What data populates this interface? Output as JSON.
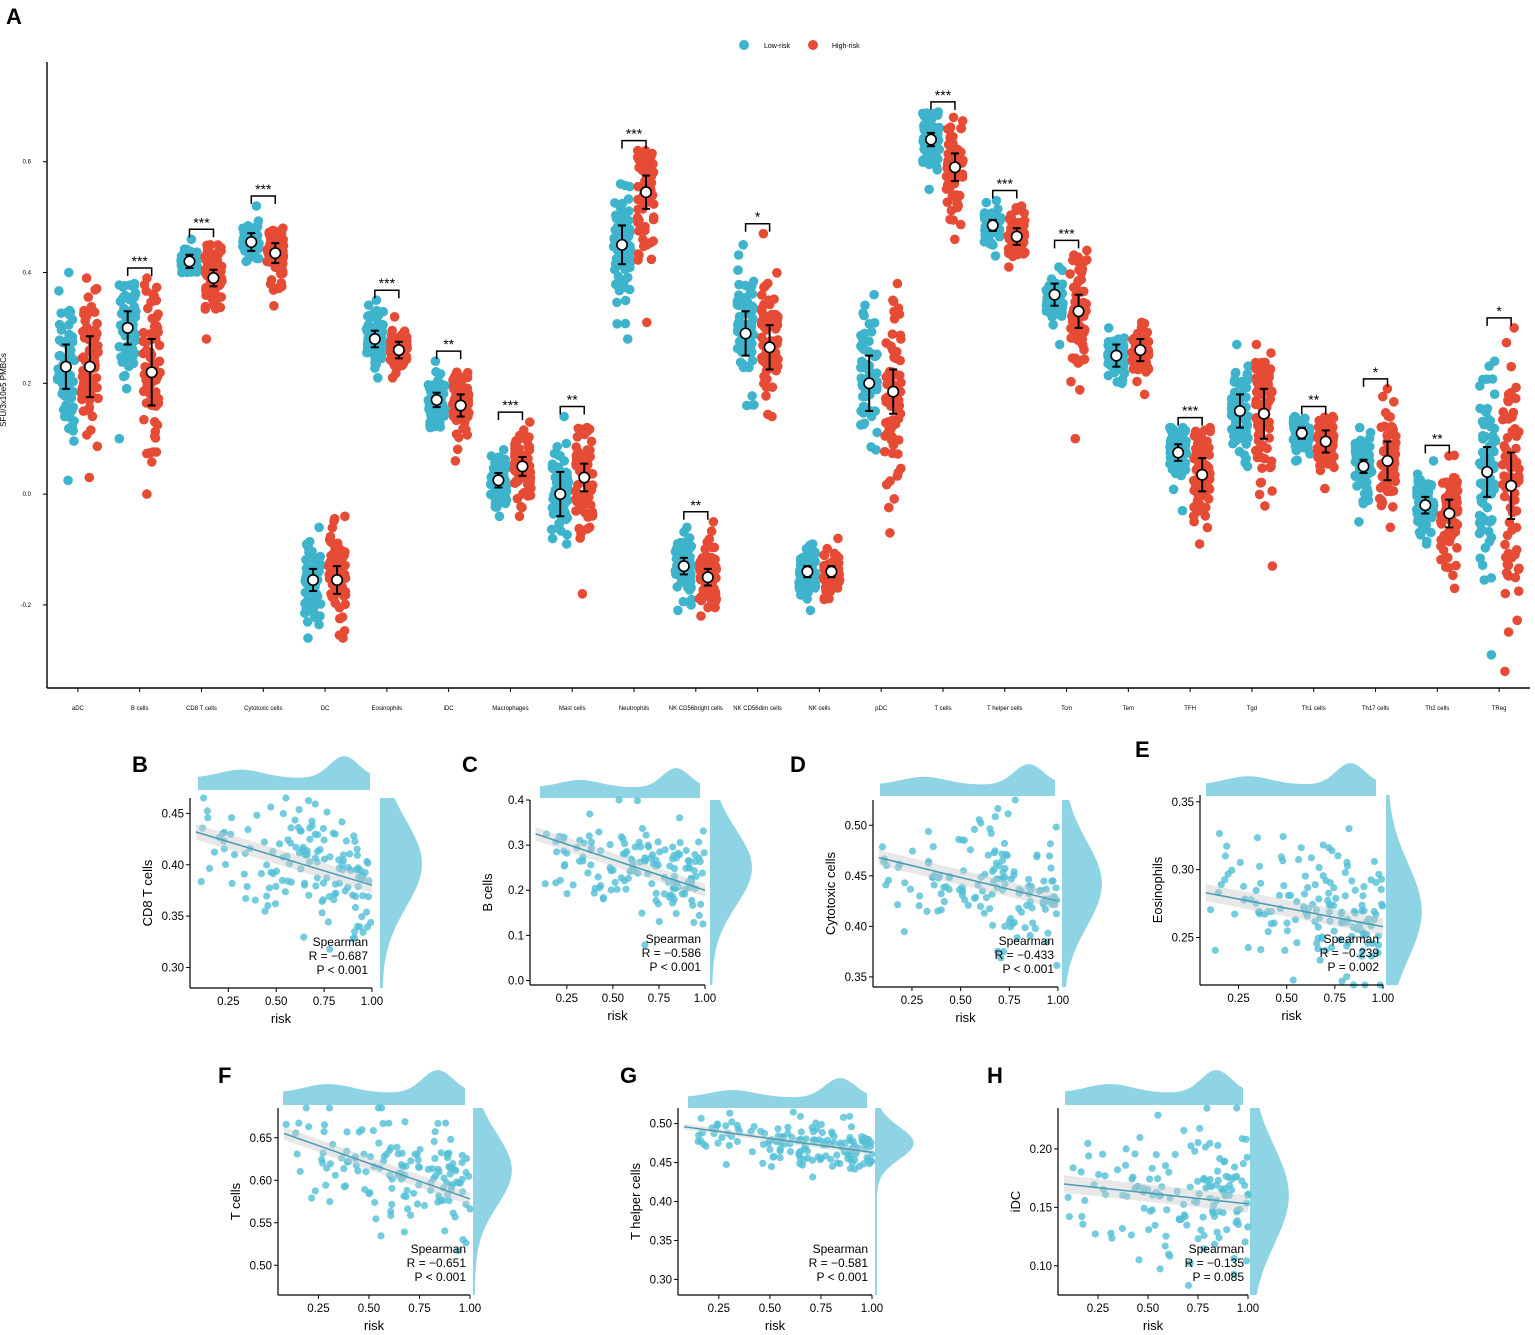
{
  "figure": {
    "colors": {
      "low": "#3eb3cc",
      "high": "#e64b35",
      "scatter": "#52bfd6",
      "density": "#8fd4e4",
      "trend": "#4a9cb5"
    }
  },
  "chart_data": [
    {
      "panel": "A",
      "type": "scatter",
      "subtype": "grouped jitter strip with mean and error bars",
      "legend": [
        "Low-risk",
        "High-risk"
      ],
      "legend_position": "top-center",
      "ylabel": "SFU/3x10e5 PMBCs",
      "ylim": [
        -0.35,
        0.78
      ],
      "yticks": [
        -0.2,
        0.0,
        0.2,
        0.4,
        0.6
      ],
      "ytick_labels": [
        "-0.2",
        "0.0",
        "0.2",
        "0.4",
        "0.6"
      ],
      "categories": [
        "aDC",
        "B cells",
        "CD8 T cells",
        "Cytotoxic cells",
        "DC",
        "Eosinophils",
        "iDC",
        "Macrophages",
        "Mast cells",
        "Neutrophils",
        "NK CD56bright cells",
        "NK CD56dim cells",
        "NK cells",
        "pDC",
        "T cells",
        "T helper cells",
        "Tcm",
        "Tem",
        "TFH",
        "Tgd",
        "Th1 cells",
        "Th17 cells",
        "Th2 cells",
        "TReg"
      ],
      "series": [
        {
          "name": "Low-risk",
          "mean": [
            0.23,
            0.3,
            0.42,
            0.455,
            -0.155,
            0.28,
            0.17,
            0.025,
            0.0,
            0.45,
            -0.13,
            0.29,
            -0.14,
            0.2,
            0.64,
            0.485,
            0.36,
            0.25,
            0.075,
            0.15,
            0.11,
            0.05,
            -0.02,
            0.04
          ],
          "err": [
            0.04,
            0.03,
            0.012,
            0.016,
            0.02,
            0.015,
            0.013,
            0.013,
            0.04,
            0.035,
            0.015,
            0.04,
            0.01,
            0.05,
            0.012,
            0.01,
            0.02,
            0.02,
            0.015,
            0.03,
            0.01,
            0.012,
            0.015,
            0.045
          ],
          "min": [
            0.025,
            0.1,
            0.4,
            0.42,
            -0.26,
            0.21,
            0.12,
            -0.04,
            -0.09,
            0.28,
            -0.21,
            0.16,
            -0.21,
            0.08,
            0.55,
            0.43,
            0.27,
            0.2,
            -0.03,
            0.05,
            0.06,
            -0.05,
            -0.09,
            -0.29
          ],
          "max": [
            0.4,
            0.38,
            0.46,
            0.52,
            -0.06,
            0.35,
            0.24,
            0.08,
            0.14,
            0.56,
            -0.06,
            0.45,
            -0.09,
            0.36,
            0.69,
            0.53,
            0.41,
            0.3,
            0.12,
            0.27,
            0.14,
            0.12,
            0.06,
            0.24
          ]
        },
        {
          "name": "High-risk",
          "mean": [
            0.23,
            0.22,
            0.39,
            0.435,
            -0.155,
            0.26,
            0.16,
            0.05,
            0.03,
            0.545,
            -0.15,
            0.265,
            -0.14,
            0.185,
            0.59,
            0.465,
            0.33,
            0.26,
            0.035,
            0.145,
            0.095,
            0.06,
            -0.035,
            0.015
          ],
          "err": [
            0.055,
            0.06,
            0.015,
            0.018,
            0.025,
            0.015,
            0.02,
            0.017,
            0.025,
            0.03,
            0.015,
            0.04,
            0.01,
            0.04,
            0.025,
            0.015,
            0.03,
            0.02,
            0.03,
            0.045,
            0.02,
            0.035,
            0.025,
            0.06
          ],
          "min": [
            0.03,
            0.0,
            0.28,
            0.34,
            -0.26,
            0.21,
            0.06,
            -0.04,
            -0.18,
            0.31,
            -0.22,
            0.14,
            -0.19,
            -0.07,
            0.46,
            0.41,
            0.1,
            0.18,
            -0.09,
            -0.13,
            0.01,
            -0.06,
            -0.17,
            -0.32
          ],
          "max": [
            0.39,
            0.39,
            0.45,
            0.48,
            -0.04,
            0.32,
            0.22,
            0.13,
            0.12,
            0.62,
            -0.05,
            0.47,
            -0.08,
            0.38,
            0.68,
            0.52,
            0.44,
            0.31,
            0.12,
            0.27,
            0.14,
            0.19,
            0.07,
            0.3
          ]
        }
      ],
      "significance": [
        "",
        "***",
        "***",
        "***",
        "",
        "***",
        "**",
        "***",
        "**",
        "***",
        "**",
        "*",
        "",
        "",
        "***",
        "***",
        "***",
        "",
        "***",
        "",
        "**",
        "*",
        "**",
        "*"
      ]
    },
    {
      "panel": "B",
      "type": "scatter",
      "title": "B",
      "xlabel": "risk",
      "ylabel": "CD8 T cells",
      "xlim": [
        0.05,
        1.0
      ],
      "ylim": [
        0.28,
        0.465
      ],
      "xticks": [
        0.25,
        0.5,
        0.75,
        1.0
      ],
      "xtick_labels": [
        "0.25",
        "0.50",
        "0.75",
        "1.00"
      ],
      "yticks": [
        0.3,
        0.35,
        0.4,
        0.45
      ],
      "ytick_labels": [
        "0.30",
        "0.35",
        "0.40",
        "0.45"
      ],
      "trend": {
        "x": [
          0.08,
          1.0
        ],
        "y": [
          0.432,
          0.38
        ]
      },
      "stats": {
        "method": "Spearman",
        "R": "R = −0.687",
        "P": "P < 0.001"
      },
      "points_summary": {
        "n": 150,
        "center_y_low_risk": 0.425,
        "center_y_high_risk": 0.385,
        "spread": 0.03
      }
    },
    {
      "panel": "C",
      "type": "scatter",
      "title": "C",
      "xlabel": "risk",
      "ylabel": "B cells",
      "xlim": [
        0.05,
        1.0
      ],
      "ylim": [
        -0.01,
        0.4
      ],
      "xticks": [
        0.25,
        0.5,
        0.75,
        1.0
      ],
      "xtick_labels": [
        "0.25",
        "0.50",
        "0.75",
        "1.00"
      ],
      "yticks": [
        0.0,
        0.1,
        0.2,
        0.3,
        0.4
      ],
      "ytick_labels": [
        "0.0",
        "0.1",
        "0.2",
        "0.3",
        "0.4"
      ],
      "trend": {
        "x": [
          0.08,
          1.0
        ],
        "y": [
          0.325,
          0.2
        ]
      },
      "stats": {
        "method": "Spearman",
        "R": "R = −0.586",
        "P": "P < 0.001"
      },
      "points_summary": {
        "n": 150,
        "center_y_low_risk": 0.31,
        "center_y_high_risk": 0.21,
        "spread": 0.06
      }
    },
    {
      "panel": "D",
      "type": "scatter",
      "title": "D",
      "xlabel": "risk",
      "ylabel": "Cytotoxic cells",
      "xlim": [
        0.05,
        1.0
      ],
      "ylim": [
        0.34,
        0.525
      ],
      "xticks": [
        0.25,
        0.5,
        0.75,
        1.0
      ],
      "xtick_labels": [
        "0.25",
        "0.50",
        "0.75",
        "1.00"
      ],
      "yticks": [
        0.35,
        0.4,
        0.45,
        0.5
      ],
      "ytick_labels": [
        "0.35",
        "0.40",
        "0.45",
        "0.50"
      ],
      "trend": {
        "x": [
          0.08,
          1.0
        ],
        "y": [
          0.468,
          0.425
        ]
      },
      "stats": {
        "method": "Spearman",
        "R": "R = −0.433",
        "P": "P < 0.001"
      },
      "points_summary": {
        "n": 150,
        "center_y_low_risk": 0.46,
        "center_y_high_risk": 0.43,
        "spread": 0.03
      }
    },
    {
      "panel": "E",
      "type": "scatter",
      "title": "E",
      "xlabel": "risk",
      "ylabel": "Eosinophils",
      "xlim": [
        0.05,
        1.0
      ],
      "ylim": [
        0.215,
        0.355
      ],
      "xticks": [
        0.25,
        0.5,
        0.75,
        1.0
      ],
      "xtick_labels": [
        "0.25",
        "0.50",
        "0.75",
        "1.00"
      ],
      "yticks": [
        0.25,
        0.3,
        0.35
      ],
      "ytick_labels": [
        "0.25",
        "0.30",
        "0.35"
      ],
      "trend": {
        "x": [
          0.08,
          1.0
        ],
        "y": [
          0.283,
          0.258
        ]
      },
      "stats": {
        "method": "Spearman",
        "R": "R = −0.239",
        "P": "P = 0.002"
      },
      "points_summary": {
        "n": 150,
        "center_y_low_risk": 0.28,
        "center_y_high_risk": 0.262,
        "spread": 0.025
      }
    },
    {
      "panel": "F",
      "type": "scatter",
      "title": "F",
      "xlabel": "risk",
      "ylabel": "T cells",
      "xlim": [
        0.05,
        1.0
      ],
      "ylim": [
        0.465,
        0.685
      ],
      "xticks": [
        0.25,
        0.5,
        0.75,
        1.0
      ],
      "xtick_labels": [
        "0.25",
        "0.50",
        "0.75",
        "1.00"
      ],
      "yticks": [
        0.5,
        0.55,
        0.6,
        0.65
      ],
      "ytick_labels": [
        "0.50",
        "0.55",
        "0.60",
        "0.65"
      ],
      "trend": {
        "x": [
          0.08,
          1.0
        ],
        "y": [
          0.655,
          0.578
        ]
      },
      "stats": {
        "method": "Spearman",
        "R": "R = −0.651",
        "P": "P < 0.001"
      },
      "points_summary": {
        "n": 150,
        "center_y_low_risk": 0.645,
        "center_y_high_risk": 0.59,
        "spread": 0.03
      }
    },
    {
      "panel": "G",
      "type": "scatter",
      "title": "G",
      "xlabel": "risk",
      "ylabel": "T helper cells",
      "xlim": [
        0.05,
        1.0
      ],
      "ylim": [
        0.28,
        0.52
      ],
      "xticks": [
        0.25,
        0.5,
        0.75,
        1.0
      ],
      "xtick_labels": [
        "0.25",
        "0.50",
        "0.75",
        "1.00"
      ],
      "yticks": [
        0.3,
        0.35,
        0.4,
        0.45,
        0.5
      ],
      "ytick_labels": [
        "0.30",
        "0.35",
        "0.40",
        "0.45",
        "0.50"
      ],
      "trend": {
        "x": [
          0.08,
          1.0
        ],
        "y": [
          0.496,
          0.463
        ]
      },
      "stats": {
        "method": "Spearman",
        "R": "R = −0.581",
        "P": "P < 0.001"
      },
      "points_summary": {
        "n": 150,
        "center_y_low_risk": 0.49,
        "center_y_high_risk": 0.465,
        "spread": 0.015
      }
    },
    {
      "panel": "H",
      "type": "scatter",
      "title": "H",
      "xlabel": "risk",
      "ylabel": "iDC",
      "xlim": [
        0.05,
        1.0
      ],
      "ylim": [
        0.075,
        0.235
      ],
      "xticks": [
        0.25,
        0.5,
        0.75,
        1.0
      ],
      "xtick_labels": [
        "0.25",
        "0.50",
        "0.75",
        "1.00"
      ],
      "yticks": [
        0.1,
        0.15,
        0.2
      ],
      "ytick_labels": [
        "0.10",
        "0.15",
        "0.20"
      ],
      "trend": {
        "x": [
          0.08,
          1.0
        ],
        "y": [
          0.17,
          0.153
        ]
      },
      "stats": {
        "method": "Spearman",
        "R": "R = −0.135",
        "P": "P = 0.085"
      },
      "points_summary": {
        "n": 150,
        "center_y_low_risk": 0.168,
        "center_y_high_risk": 0.155,
        "spread": 0.03
      }
    }
  ]
}
